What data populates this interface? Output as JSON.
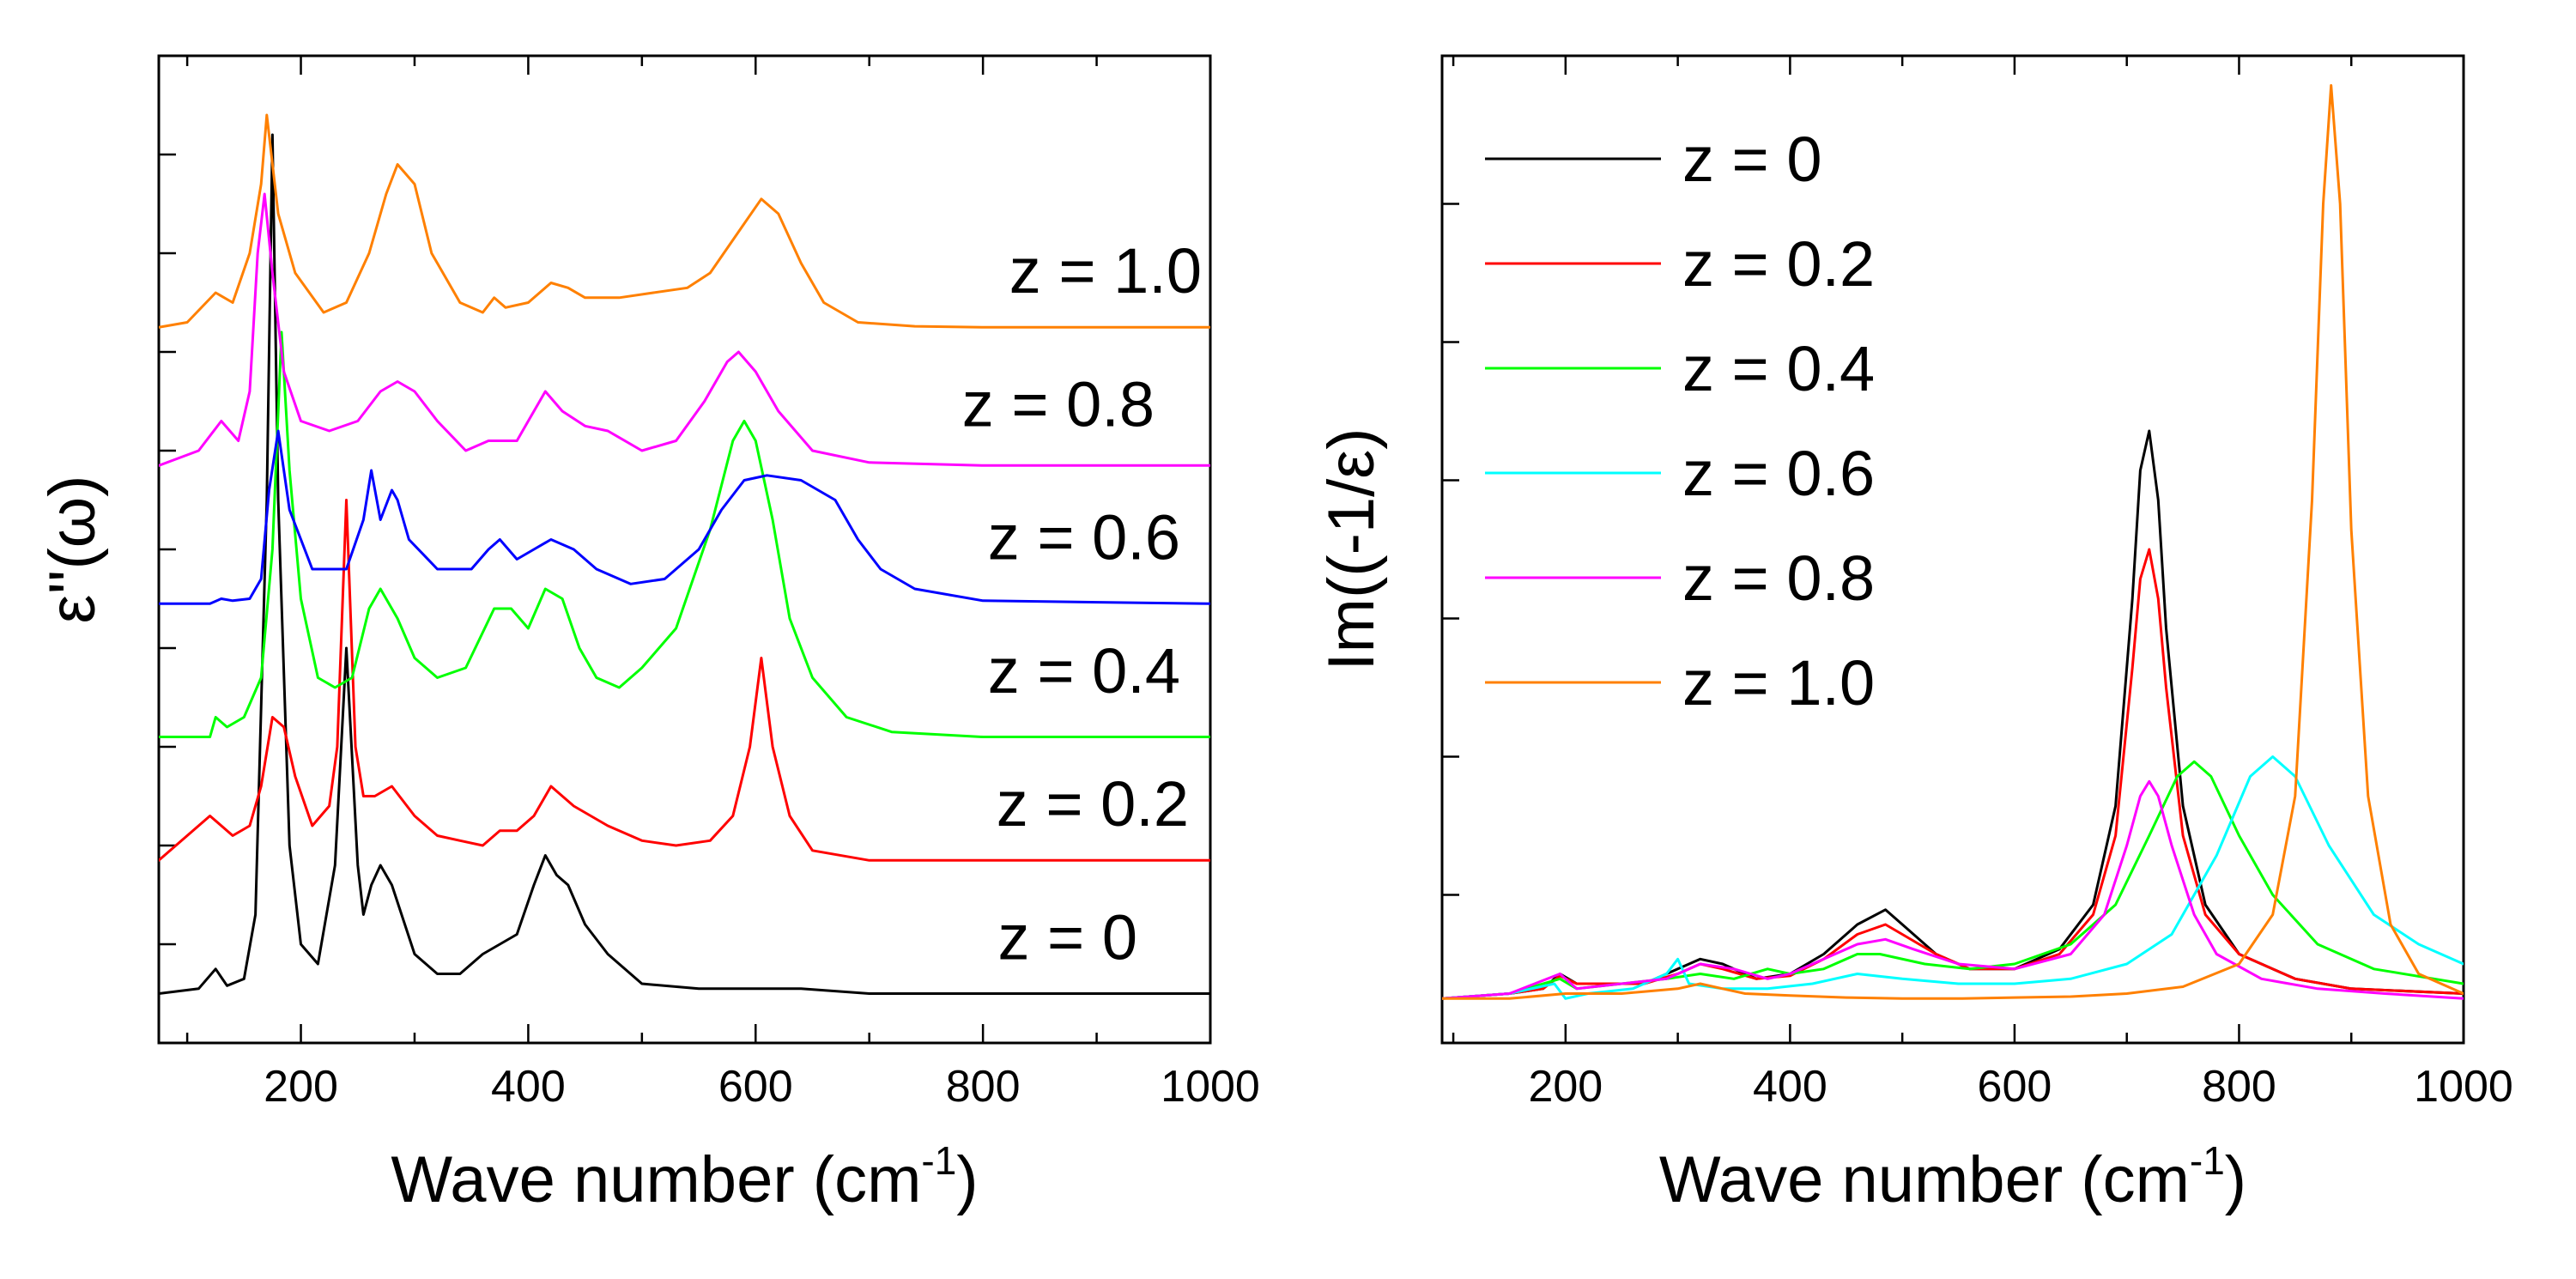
{
  "chart_data": [
    {
      "type": "line",
      "xlabel": "Wave number (cm",
      "xlabel_sup": "-1",
      "xlabel_close": ")",
      "ylabel": "ε''(ω)",
      "xlim": [
        75,
        1000
      ],
      "ylim": [
        0,
        1
      ],
      "x_ticks": [
        200,
        400,
        600,
        800,
        1000
      ],
      "x_tick_labels": [
        "200",
        "400",
        "600",
        "800",
        "1000"
      ],
      "y_tick_values": [
        0.1,
        0.2,
        0.3,
        0.4,
        0.5,
        0.6,
        0.7,
        0.8,
        0.9
      ],
      "y_tick_labels": [],
      "grid": false,
      "series": [
        {
          "name": "z = 0",
          "color": "#000000",
          "offset": 0.05,
          "x": [
            75,
            110,
            125,
            135,
            150,
            160,
            170,
            175,
            180,
            190,
            200,
            215,
            230,
            240,
            250,
            255,
            262,
            270,
            280,
            300,
            320,
            340,
            360,
            375,
            390,
            405,
            415,
            425,
            435,
            450,
            470,
            500,
            550,
            600,
            640,
            700,
            800,
            1000
          ],
          "y": [
            0.05,
            0.055,
            0.075,
            0.058,
            0.065,
            0.13,
            0.55,
            0.92,
            0.55,
            0.2,
            0.1,
            0.08,
            0.18,
            0.4,
            0.18,
            0.13,
            0.16,
            0.18,
            0.16,
            0.09,
            0.07,
            0.07,
            0.09,
            0.1,
            0.11,
            0.16,
            0.19,
            0.17,
            0.16,
            0.12,
            0.09,
            0.06,
            0.055,
            0.055,
            0.055,
            0.05,
            0.05,
            0.05
          ]
        },
        {
          "name": "z = 0.2",
          "color": "#ff0000",
          "offset": 0.185,
          "x": [
            75,
            100,
            120,
            140,
            155,
            165,
            175,
            185,
            195,
            210,
            225,
            232,
            240,
            248,
            255,
            265,
            280,
            300,
            320,
            340,
            360,
            375,
            390,
            405,
            420,
            440,
            470,
            500,
            530,
            560,
            580,
            595,
            605,
            615,
            630,
            650,
            700,
            800,
            1000
          ],
          "y": [
            0.185,
            0.21,
            0.23,
            0.21,
            0.22,
            0.26,
            0.33,
            0.32,
            0.27,
            0.22,
            0.24,
            0.3,
            0.55,
            0.3,
            0.25,
            0.25,
            0.26,
            0.23,
            0.21,
            0.205,
            0.2,
            0.215,
            0.215,
            0.23,
            0.26,
            0.24,
            0.22,
            0.205,
            0.2,
            0.205,
            0.23,
            0.3,
            0.39,
            0.3,
            0.23,
            0.195,
            0.185,
            0.185,
            0.185
          ]
        },
        {
          "name": "z = 0.4",
          "color": "#00ff00",
          "offset": 0.31,
          "x": [
            75,
            120,
            125,
            135,
            150,
            165,
            175,
            183,
            190,
            200,
            215,
            230,
            245,
            260,
            270,
            285,
            300,
            320,
            345,
            370,
            385,
            400,
            415,
            430,
            445,
            460,
            480,
            500,
            530,
            560,
            580,
            590,
            600,
            615,
            630,
            650,
            680,
            720,
            800,
            1000
          ],
          "y": [
            0.31,
            0.31,
            0.33,
            0.32,
            0.33,
            0.37,
            0.5,
            0.72,
            0.58,
            0.45,
            0.37,
            0.36,
            0.37,
            0.44,
            0.46,
            0.43,
            0.39,
            0.37,
            0.38,
            0.44,
            0.44,
            0.42,
            0.46,
            0.45,
            0.4,
            0.37,
            0.36,
            0.38,
            0.42,
            0.52,
            0.61,
            0.63,
            0.61,
            0.53,
            0.43,
            0.37,
            0.33,
            0.315,
            0.31,
            0.31
          ]
        },
        {
          "name": "z = 0.6",
          "color": "#0000ff",
          "offset": 0.445,
          "x": [
            75,
            120,
            130,
            140,
            155,
            165,
            172,
            180,
            190,
            210,
            240,
            255,
            262,
            270,
            280,
            285,
            295,
            320,
            350,
            365,
            375,
            390,
            405,
            420,
            440,
            460,
            490,
            520,
            550,
            570,
            590,
            610,
            640,
            670,
            690,
            710,
            740,
            800,
            1000
          ],
          "y": [
            0.445,
            0.445,
            0.45,
            0.448,
            0.45,
            0.47,
            0.56,
            0.62,
            0.54,
            0.48,
            0.48,
            0.53,
            0.58,
            0.53,
            0.56,
            0.55,
            0.51,
            0.48,
            0.48,
            0.5,
            0.51,
            0.49,
            0.5,
            0.51,
            0.5,
            0.48,
            0.465,
            0.47,
            0.5,
            0.54,
            0.57,
            0.575,
            0.57,
            0.55,
            0.51,
            0.48,
            0.46,
            0.448,
            0.445
          ]
        },
        {
          "name": "z = 0.8",
          "color": "#ff00ff",
          "offset": 0.585,
          "x": [
            75,
            110,
            130,
            145,
            155,
            162,
            168,
            175,
            185,
            200,
            225,
            250,
            270,
            285,
            300,
            320,
            345,
            365,
            375,
            390,
            400,
            415,
            430,
            450,
            470,
            500,
            530,
            555,
            575,
            585,
            600,
            620,
            650,
            700,
            800,
            1000
          ],
          "y": [
            0.585,
            0.6,
            0.63,
            0.61,
            0.66,
            0.8,
            0.86,
            0.78,
            0.68,
            0.63,
            0.62,
            0.63,
            0.66,
            0.67,
            0.66,
            0.63,
            0.6,
            0.61,
            0.61,
            0.61,
            0.63,
            0.66,
            0.64,
            0.625,
            0.62,
            0.6,
            0.61,
            0.65,
            0.69,
            0.7,
            0.68,
            0.64,
            0.6,
            0.588,
            0.585,
            0.585
          ]
        },
        {
          "name": "z = 1.0",
          "color": "#ff8000",
          "offset": 0.725,
          "x": [
            75,
            100,
            125,
            140,
            155,
            165,
            170,
            180,
            195,
            220,
            240,
            260,
            275,
            285,
            300,
            315,
            340,
            360,
            370,
            380,
            400,
            420,
            435,
            450,
            480,
            510,
            540,
            560,
            590,
            605,
            620,
            640,
            660,
            690,
            740,
            800,
            1000
          ],
          "y": [
            0.725,
            0.73,
            0.76,
            0.75,
            0.8,
            0.87,
            0.94,
            0.84,
            0.78,
            0.74,
            0.75,
            0.8,
            0.86,
            0.89,
            0.87,
            0.8,
            0.75,
            0.74,
            0.755,
            0.745,
            0.75,
            0.77,
            0.765,
            0.755,
            0.755,
            0.76,
            0.765,
            0.78,
            0.83,
            0.855,
            0.84,
            0.79,
            0.75,
            0.73,
            0.726,
            0.725,
            0.725
          ]
        }
      ],
      "annotations": [
        {
          "text": "z = 1.0",
          "series": 5
        },
        {
          "text": "z = 0.8",
          "series": 4
        },
        {
          "text": "z = 0.6",
          "series": 3
        },
        {
          "text": "z = 0.4",
          "series": 2
        },
        {
          "text": "z = 0.2",
          "series": 1
        },
        {
          "text": "z = 0",
          "series": 0
        }
      ]
    },
    {
      "type": "line",
      "xlabel": "Wave number (cm",
      "xlabel_sup": "-1",
      "xlabel_close": ")",
      "ylabel": "Im((-1/ε)",
      "xlim": [
        90,
        1000
      ],
      "ylim": [
        0,
        1
      ],
      "x_ticks": [
        200,
        400,
        600,
        800,
        1000
      ],
      "x_tick_labels": [
        "200",
        "400",
        "600",
        "800",
        "1000"
      ],
      "y_tick_values": [
        0.15,
        0.29,
        0.43,
        0.57,
        0.71,
        0.85
      ],
      "y_tick_labels": [],
      "grid": false,
      "legend": "top-left",
      "series": [
        {
          "name": "z = 0",
          "color": "#000000",
          "x": [
            90,
            150,
            180,
            195,
            210,
            240,
            270,
            300,
            320,
            340,
            370,
            400,
            430,
            460,
            485,
            500,
            530,
            560,
            600,
            640,
            670,
            690,
            705,
            712,
            720,
            728,
            735,
            750,
            770,
            800,
            850,
            900,
            1000
          ],
          "y": [
            0.045,
            0.05,
            0.055,
            0.07,
            0.06,
            0.06,
            0.06,
            0.075,
            0.085,
            0.08,
            0.065,
            0.07,
            0.09,
            0.12,
            0.135,
            0.12,
            0.09,
            0.075,
            0.075,
            0.095,
            0.14,
            0.24,
            0.45,
            0.58,
            0.62,
            0.55,
            0.42,
            0.24,
            0.14,
            0.09,
            0.065,
            0.055,
            0.05
          ]
        },
        {
          "name": "z = 0.2",
          "color": "#ff0000",
          "x": [
            90,
            150,
            180,
            195,
            210,
            240,
            270,
            300,
            320,
            340,
            370,
            400,
            430,
            460,
            485,
            500,
            530,
            560,
            600,
            640,
            670,
            690,
            705,
            712,
            720,
            728,
            735,
            750,
            770,
            800,
            850,
            900,
            1000
          ],
          "y": [
            0.045,
            0.05,
            0.055,
            0.068,
            0.06,
            0.06,
            0.06,
            0.07,
            0.08,
            0.075,
            0.065,
            0.068,
            0.085,
            0.11,
            0.12,
            0.11,
            0.09,
            0.075,
            0.075,
            0.09,
            0.13,
            0.21,
            0.38,
            0.47,
            0.5,
            0.45,
            0.36,
            0.21,
            0.13,
            0.09,
            0.065,
            0.055,
            0.05
          ]
        },
        {
          "name": "z = 0.4",
          "color": "#00ff00",
          "x": [
            90,
            150,
            195,
            210,
            250,
            290,
            320,
            350,
            380,
            400,
            430,
            460,
            480,
            520,
            560,
            600,
            650,
            690,
            720,
            745,
            760,
            775,
            800,
            830,
            870,
            920,
            1000
          ],
          "y": [
            0.045,
            0.05,
            0.065,
            0.055,
            0.06,
            0.065,
            0.07,
            0.065,
            0.075,
            0.07,
            0.075,
            0.09,
            0.09,
            0.08,
            0.075,
            0.08,
            0.1,
            0.14,
            0.21,
            0.27,
            0.285,
            0.27,
            0.21,
            0.15,
            0.1,
            0.075,
            0.06
          ]
        },
        {
          "name": "z = 0.6",
          "color": "#00ffff",
          "x": [
            90,
            150,
            190,
            200,
            220,
            260,
            290,
            300,
            310,
            340,
            380,
            420,
            460,
            500,
            550,
            600,
            650,
            700,
            740,
            780,
            810,
            830,
            850,
            880,
            920,
            960,
            1000
          ],
          "y": [
            0.045,
            0.05,
            0.06,
            0.045,
            0.05,
            0.055,
            0.07,
            0.085,
            0.06,
            0.055,
            0.055,
            0.06,
            0.07,
            0.065,
            0.06,
            0.06,
            0.065,
            0.08,
            0.11,
            0.19,
            0.27,
            0.29,
            0.27,
            0.2,
            0.13,
            0.1,
            0.08
          ]
        },
        {
          "name": "z = 0.8",
          "color": "#ff00ff",
          "x": [
            90,
            150,
            195,
            210,
            250,
            290,
            320,
            350,
            380,
            400,
            430,
            460,
            485,
            510,
            550,
            600,
            650,
            680,
            700,
            712,
            720,
            728,
            740,
            760,
            780,
            820,
            870,
            930,
            1000
          ],
          "y": [
            0.045,
            0.05,
            0.07,
            0.055,
            0.06,
            0.065,
            0.08,
            0.075,
            0.065,
            0.07,
            0.085,
            0.1,
            0.105,
            0.095,
            0.08,
            0.075,
            0.09,
            0.13,
            0.2,
            0.25,
            0.265,
            0.25,
            0.2,
            0.13,
            0.09,
            0.065,
            0.055,
            0.05,
            0.045
          ]
        },
        {
          "name": "z = 1.0",
          "color": "#ff8000",
          "x": [
            90,
            150,
            200,
            250,
            300,
            320,
            340,
            360,
            400,
            450,
            500,
            550,
            600,
            650,
            700,
            750,
            800,
            830,
            850,
            865,
            875,
            882,
            890,
            900,
            915,
            935,
            960,
            1000
          ],
          "y": [
            0.045,
            0.045,
            0.05,
            0.05,
            0.055,
            0.06,
            0.055,
            0.05,
            0.048,
            0.046,
            0.045,
            0.045,
            0.046,
            0.047,
            0.05,
            0.057,
            0.08,
            0.13,
            0.25,
            0.55,
            0.85,
            0.97,
            0.85,
            0.52,
            0.25,
            0.12,
            0.07,
            0.05
          ]
        }
      ]
    }
  ]
}
